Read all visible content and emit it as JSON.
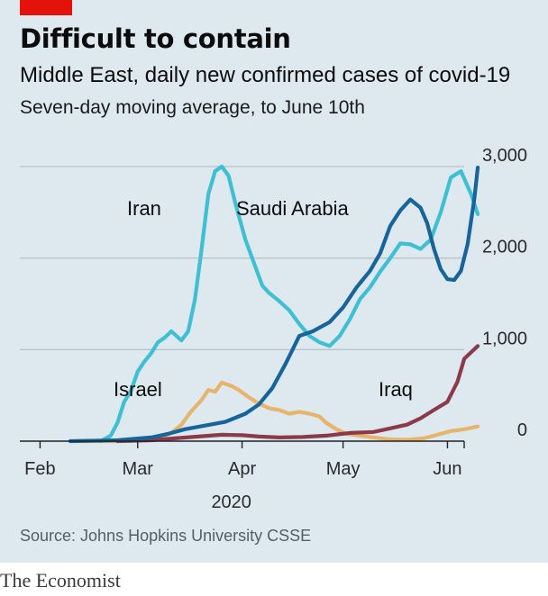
{
  "header": {
    "title": "Difficult to contain",
    "subtitle": "Middle East, daily new confirmed cases of covid-19",
    "subtitle2": "Seven-day moving average, to June 10th"
  },
  "footer": {
    "source": "Source: Johns Hopkins University CSSE",
    "brand": "The Economist"
  },
  "colors": {
    "accent_bar": "#e3120b",
    "background": "#dde8ef",
    "gridline": "#b8c2c8"
  },
  "chart_data": {
    "type": "line",
    "title": "Difficult to contain",
    "subtitle": "Middle East, daily new confirmed cases of covid-19",
    "ylabel": "",
    "xlabel": "",
    "ylim": [
      0,
      3000
    ],
    "xlim": [
      "2020-01-26",
      "2020-06-14"
    ],
    "yticks": [
      0,
      1000,
      2000,
      3000
    ],
    "ytick_labels": [
      "0",
      "1,000",
      "2,000",
      "3,000"
    ],
    "xticks": [
      {
        "date": "2020-02-01",
        "label": "Feb"
      },
      {
        "date": "2020-03-01",
        "label": "Mar"
      },
      {
        "date": "2020-04-01",
        "label": "Apr"
      },
      {
        "date": "2020-05-01",
        "label": "May"
      },
      {
        "date": "2020-06-01",
        "label": "Jun"
      }
    ],
    "year_label": "2020",
    "y_axis_side": "right",
    "grid": true,
    "series": [
      {
        "name": "Israel",
        "color": "#e6b46c",
        "points": [
          [
            "2020-02-11",
            0
          ],
          [
            "2020-02-24",
            0
          ],
          [
            "2020-03-03",
            10
          ],
          [
            "2020-03-07",
            30
          ],
          [
            "2020-03-11",
            90
          ],
          [
            "2020-03-14",
            180
          ],
          [
            "2020-03-17",
            330
          ],
          [
            "2020-03-20",
            450
          ],
          [
            "2020-03-22",
            560
          ],
          [
            "2020-03-24",
            540
          ],
          [
            "2020-03-26",
            640
          ],
          [
            "2020-03-29",
            600
          ],
          [
            "2020-03-31",
            560
          ],
          [
            "2020-04-03",
            480
          ],
          [
            "2020-04-06",
            410
          ],
          [
            "2020-04-09",
            360
          ],
          [
            "2020-04-12",
            340
          ],
          [
            "2020-04-15",
            300
          ],
          [
            "2020-04-18",
            320
          ],
          [
            "2020-04-21",
            300
          ],
          [
            "2020-04-24",
            270
          ],
          [
            "2020-04-26",
            200
          ],
          [
            "2020-04-29",
            130
          ],
          [
            "2020-05-02",
            80
          ],
          [
            "2020-05-06",
            60
          ],
          [
            "2020-05-10",
            40
          ],
          [
            "2020-05-15",
            20
          ],
          [
            "2020-05-20",
            15
          ],
          [
            "2020-05-25",
            30
          ],
          [
            "2020-05-29",
            70
          ],
          [
            "2020-06-02",
            110
          ],
          [
            "2020-06-06",
            130
          ],
          [
            "2020-06-10",
            160
          ]
        ]
      },
      {
        "name": "Iraq",
        "color": "#8b3a4a",
        "points": [
          [
            "2020-02-24",
            0
          ],
          [
            "2020-03-05",
            10
          ],
          [
            "2020-03-12",
            30
          ],
          [
            "2020-03-19",
            50
          ],
          [
            "2020-03-26",
            70
          ],
          [
            "2020-04-01",
            65
          ],
          [
            "2020-04-06",
            50
          ],
          [
            "2020-04-12",
            40
          ],
          [
            "2020-04-19",
            45
          ],
          [
            "2020-04-26",
            60
          ],
          [
            "2020-05-03",
            90
          ],
          [
            "2020-05-10",
            100
          ],
          [
            "2020-05-15",
            140
          ],
          [
            "2020-05-20",
            180
          ],
          [
            "2020-05-24",
            250
          ],
          [
            "2020-05-28",
            340
          ],
          [
            "2020-06-01",
            430
          ],
          [
            "2020-06-04",
            650
          ],
          [
            "2020-06-06",
            900
          ],
          [
            "2020-06-08",
            970
          ],
          [
            "2020-06-10",
            1040
          ]
        ]
      },
      {
        "name": "Iran",
        "color": "#3ebfd4",
        "points": [
          [
            "2020-02-19",
            0
          ],
          [
            "2020-02-22",
            60
          ],
          [
            "2020-02-24",
            200
          ],
          [
            "2020-02-26",
            430
          ],
          [
            "2020-02-28",
            550
          ],
          [
            "2020-03-01",
            760
          ],
          [
            "2020-03-03",
            870
          ],
          [
            "2020-03-05",
            960
          ],
          [
            "2020-03-07",
            1080
          ],
          [
            "2020-03-09",
            1130
          ],
          [
            "2020-03-11",
            1200
          ],
          [
            "2020-03-14",
            1100
          ],
          [
            "2020-03-16",
            1200
          ],
          [
            "2020-03-18",
            1550
          ],
          [
            "2020-03-20",
            2100
          ],
          [
            "2020-03-22",
            2700
          ],
          [
            "2020-03-24",
            2950
          ],
          [
            "2020-03-26",
            3000
          ],
          [
            "2020-03-28",
            2900
          ],
          [
            "2020-03-30",
            2600
          ],
          [
            "2020-04-02",
            2200
          ],
          [
            "2020-04-05",
            1900
          ],
          [
            "2020-04-07",
            1700
          ],
          [
            "2020-04-09",
            1620
          ],
          [
            "2020-04-12",
            1530
          ],
          [
            "2020-04-15",
            1430
          ],
          [
            "2020-04-18",
            1280
          ],
          [
            "2020-04-21",
            1150
          ],
          [
            "2020-04-24",
            1080
          ],
          [
            "2020-04-27",
            1040
          ],
          [
            "2020-04-30",
            1150
          ],
          [
            "2020-05-03",
            1330
          ],
          [
            "2020-05-06",
            1550
          ],
          [
            "2020-05-09",
            1680
          ],
          [
            "2020-05-12",
            1850
          ],
          [
            "2020-05-15",
            2000
          ],
          [
            "2020-05-18",
            2160
          ],
          [
            "2020-05-21",
            2150
          ],
          [
            "2020-05-24",
            2100
          ],
          [
            "2020-05-27",
            2200
          ],
          [
            "2020-05-30",
            2500
          ],
          [
            "2020-06-02",
            2880
          ],
          [
            "2020-06-05",
            2950
          ],
          [
            "2020-06-08",
            2700
          ],
          [
            "2020-06-10",
            2480
          ]
        ]
      },
      {
        "name": "Saudi Arabia",
        "color": "#17649a",
        "points": [
          [
            "2020-02-10",
            0
          ],
          [
            "2020-02-24",
            10
          ],
          [
            "2020-03-05",
            40
          ],
          [
            "2020-03-10",
            80
          ],
          [
            "2020-03-15",
            130
          ],
          [
            "2020-03-21",
            170
          ],
          [
            "2020-03-27",
            210
          ],
          [
            "2020-04-02",
            300
          ],
          [
            "2020-04-06",
            400
          ],
          [
            "2020-04-10",
            580
          ],
          [
            "2020-04-14",
            850
          ],
          [
            "2020-04-18",
            1150
          ],
          [
            "2020-04-22",
            1200
          ],
          [
            "2020-04-27",
            1300
          ],
          [
            "2020-05-01",
            1460
          ],
          [
            "2020-05-05",
            1680
          ],
          [
            "2020-05-09",
            1860
          ],
          [
            "2020-05-12",
            2050
          ],
          [
            "2020-05-15",
            2350
          ],
          [
            "2020-05-18",
            2520
          ],
          [
            "2020-05-21",
            2640
          ],
          [
            "2020-05-24",
            2550
          ],
          [
            "2020-05-26",
            2380
          ],
          [
            "2020-05-28",
            2100
          ],
          [
            "2020-05-30",
            1880
          ],
          [
            "2020-06-01",
            1770
          ],
          [
            "2020-06-03",
            1760
          ],
          [
            "2020-06-05",
            1860
          ],
          [
            "2020-06-07",
            2150
          ],
          [
            "2020-06-09",
            2650
          ],
          [
            "2020-06-10",
            2990
          ]
        ]
      }
    ],
    "series_labels": [
      {
        "series": "Iran",
        "text": "Iran"
      },
      {
        "series": "Saudi Arabia",
        "text": "Saudi Arabia"
      },
      {
        "series": "Israel",
        "text": "Israel"
      },
      {
        "series": "Iraq",
        "text": "Iraq"
      }
    ]
  }
}
